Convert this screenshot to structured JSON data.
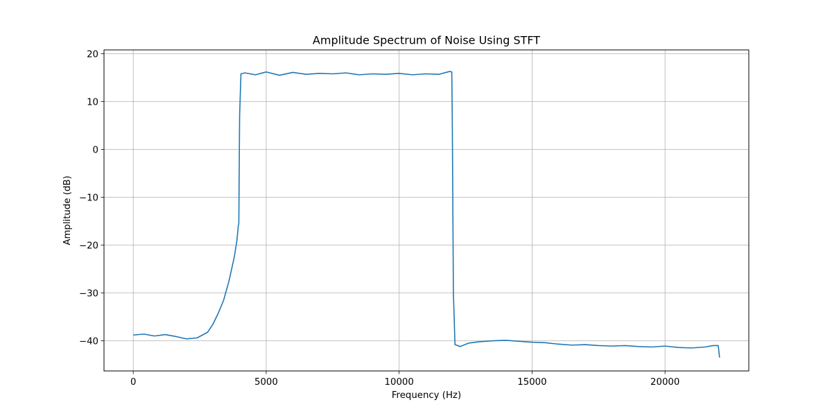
{
  "chart_data": {
    "type": "line",
    "title": "Amplitude Spectrum of Noise Using STFT",
    "xlabel": "Frequency (Hz)",
    "ylabel": "Amplitude (dB)",
    "xlim": [
      -1100,
      23150
    ],
    "ylim": [
      -46.3,
      20.8
    ],
    "x_ticks": [
      0,
      5000,
      10000,
      15000,
      20000
    ],
    "x_tick_labels": [
      "0",
      "5000",
      "10000",
      "15000",
      "20000"
    ],
    "y_ticks": [
      20,
      10,
      0,
      -10,
      -20,
      -30,
      -40
    ],
    "y_tick_labels": [
      "20",
      "10",
      "0",
      "−10",
      "−20",
      "−30",
      "−40"
    ],
    "grid": true,
    "legend": false,
    "series": [
      {
        "color": "#1f77b4",
        "x": [
          0,
          400,
          800,
          1200,
          1600,
          2000,
          2400,
          2800,
          3000,
          3200,
          3400,
          3500,
          3600,
          3700,
          3800,
          3900,
          3950,
          3970,
          4000,
          4050,
          4200,
          4600,
          5000,
          5500,
          6000,
          6500,
          7000,
          7500,
          8000,
          8500,
          9000,
          9500,
          10000,
          10500,
          11000,
          11500,
          11900,
          11980,
          12000,
          12040,
          12100,
          12300,
          12600,
          13000,
          13500,
          14000,
          14500,
          15000,
          15500,
          16000,
          16500,
          17000,
          17500,
          18000,
          18500,
          19000,
          19500,
          20000,
          20500,
          21000,
          21500,
          21800,
          22000,
          22050
        ],
        "y": [
          -38.8,
          -38.6,
          -39.0,
          -38.7,
          -39.1,
          -39.6,
          -39.4,
          -38.2,
          -36.5,
          -34.2,
          -31.5,
          -29.5,
          -27.5,
          -25.0,
          -22.5,
          -19.0,
          -16.0,
          -15.5,
          7.0,
          15.8,
          16.0,
          15.6,
          16.2,
          15.5,
          16.1,
          15.7,
          15.9,
          15.8,
          16.0,
          15.6,
          15.8,
          15.7,
          15.9,
          15.6,
          15.8,
          15.7,
          16.3,
          16.2,
          5.0,
          -30.0,
          -40.8,
          -41.2,
          -40.5,
          -40.2,
          -40.0,
          -39.9,
          -40.1,
          -40.3,
          -40.4,
          -40.7,
          -40.9,
          -40.8,
          -41.0,
          -41.1,
          -41.0,
          -41.2,
          -41.3,
          -41.1,
          -41.4,
          -41.5,
          -41.3,
          -41.0,
          -41.0,
          -43.5
        ]
      }
    ]
  }
}
